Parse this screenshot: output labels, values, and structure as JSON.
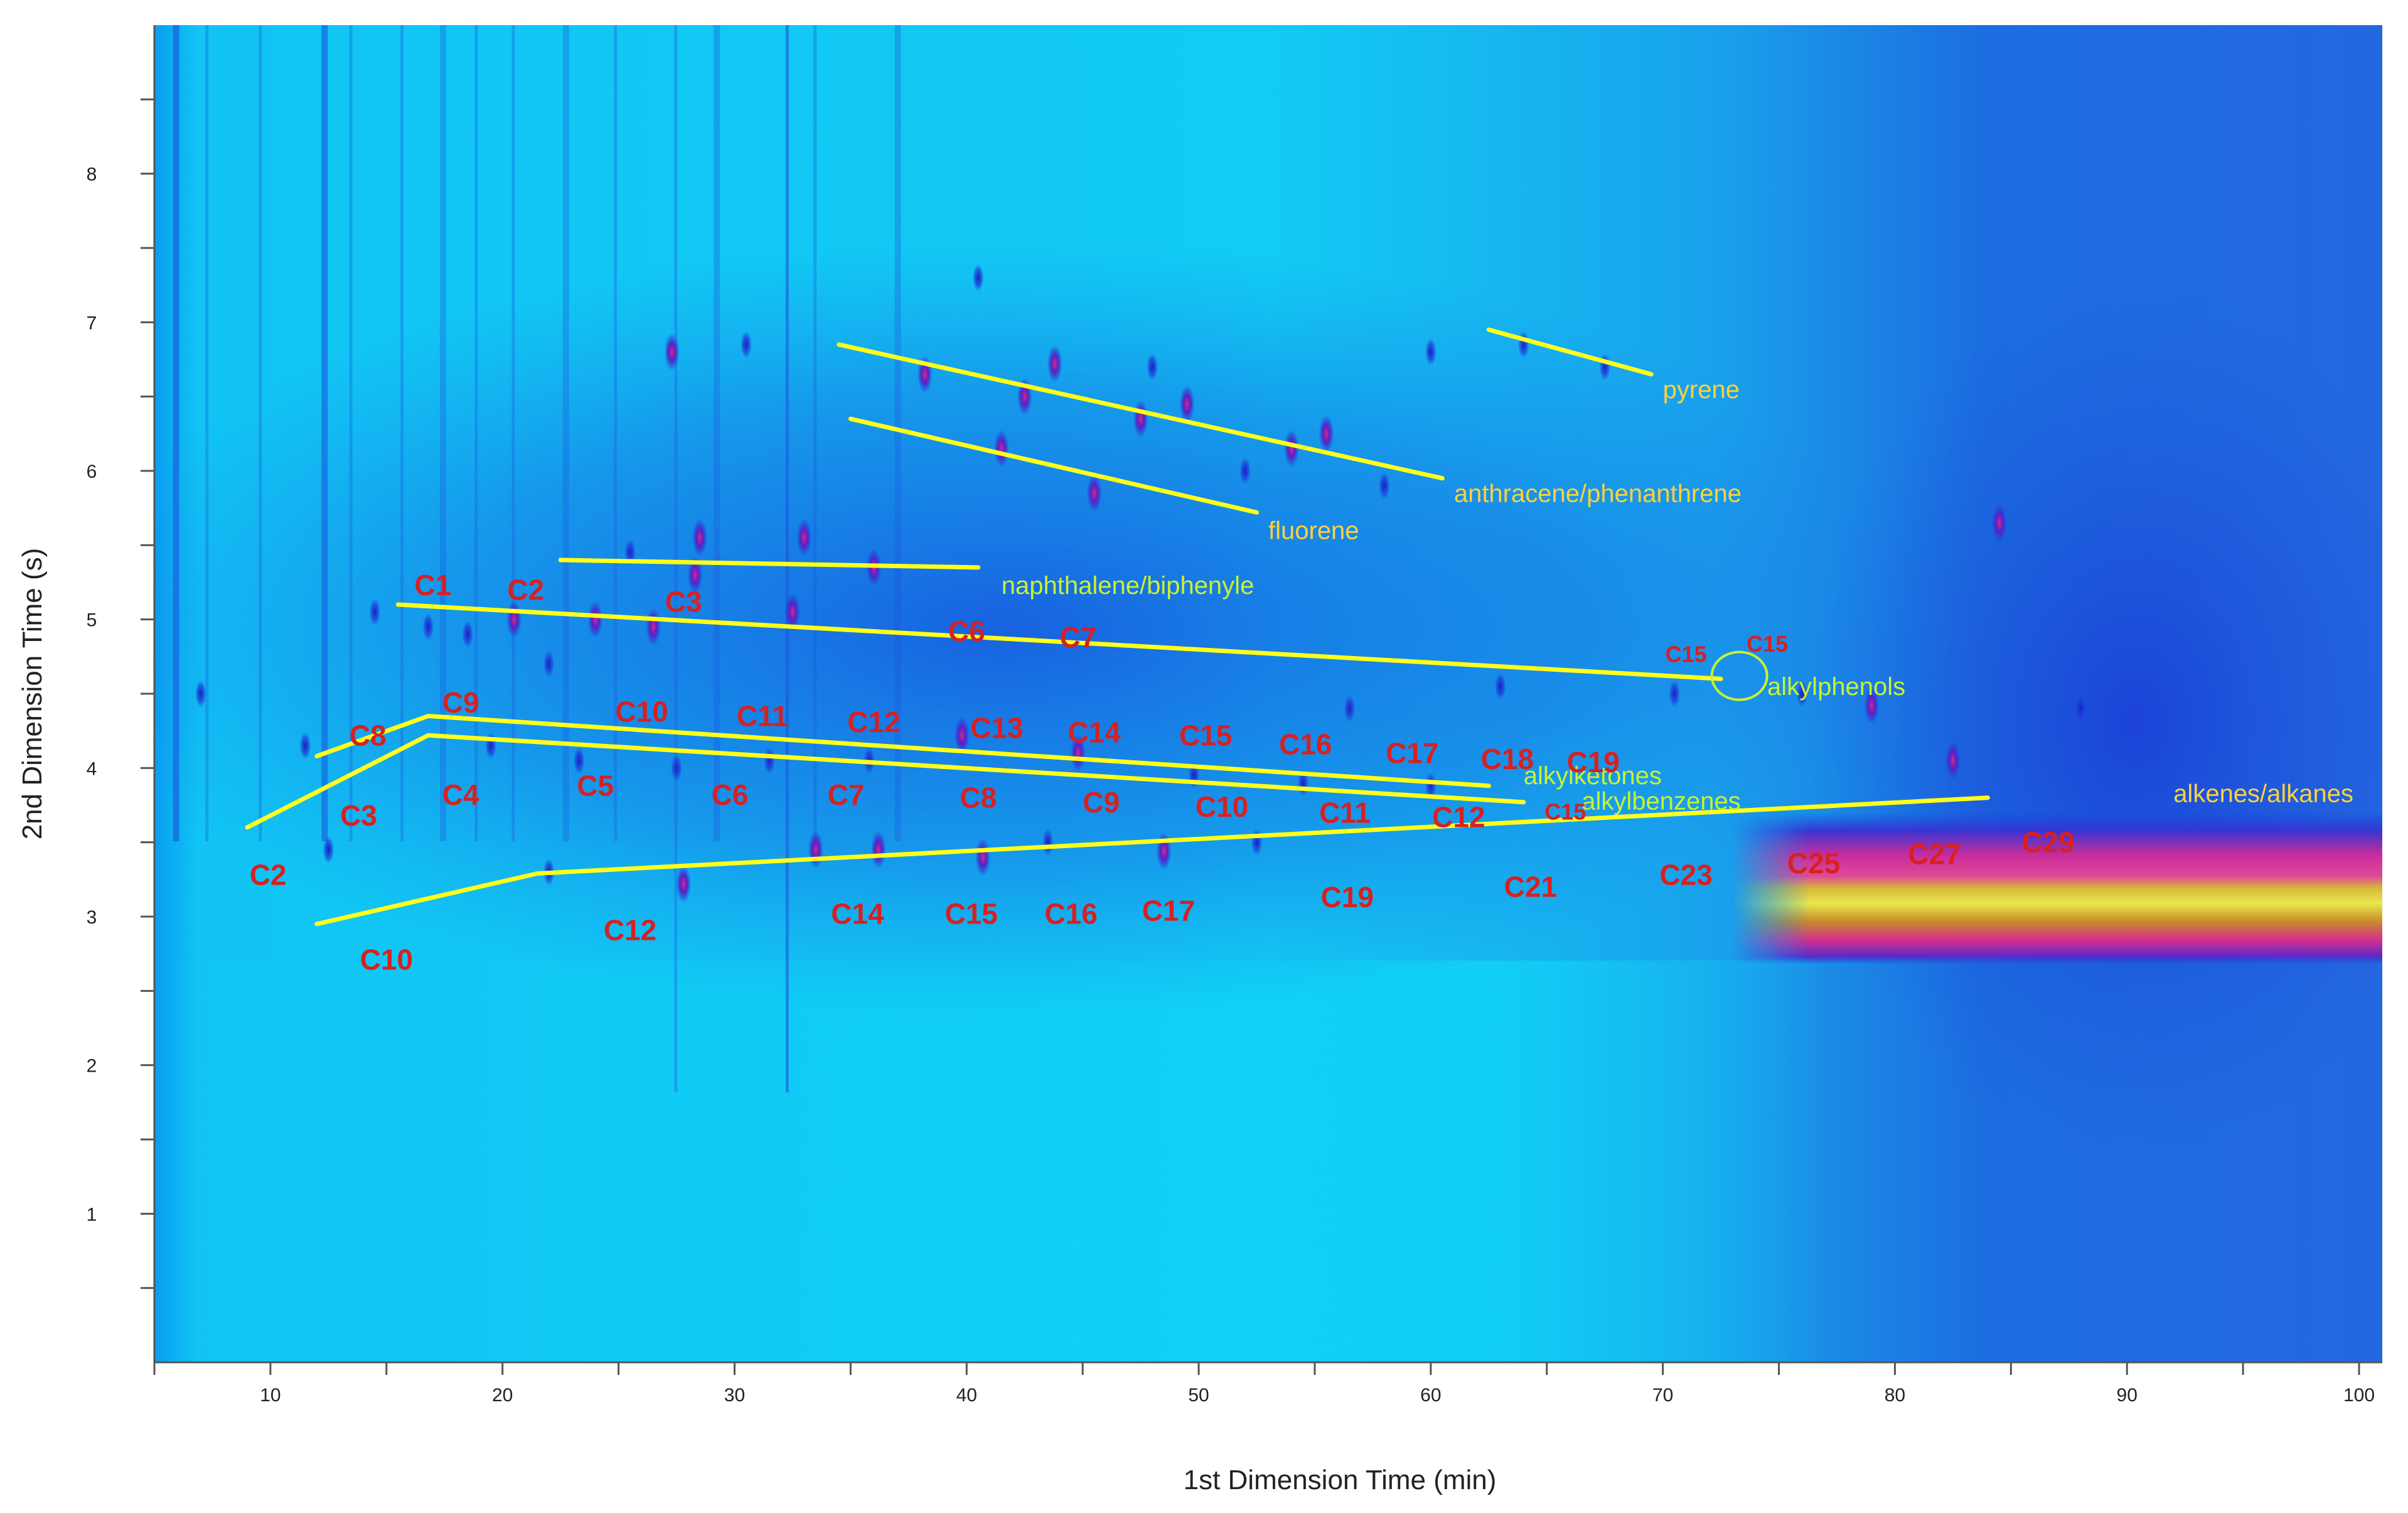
{
  "chart_data": {
    "type": "heatmap",
    "xlabel": "1st Dimension Time (min)",
    "ylabel": "2nd Dimension Time (s)",
    "xlim": [
      5,
      101
    ],
    "ylim": [
      0,
      9
    ],
    "xticks": [
      10,
      20,
      30,
      40,
      50,
      60,
      70,
      80,
      90,
      100
    ],
    "yticks": [
      1,
      2,
      3,
      4,
      5,
      6,
      7,
      8
    ],
    "colors": {
      "background": "#0ad0f5",
      "intense_blue": "#1a3fd8",
      "peak": "#c21f88",
      "hot": "#e6e640",
      "line": "#ffff1a",
      "group_label": "#ffd23a",
      "group_label_green": "#c8f232",
      "carbon_label": "#d82020"
    },
    "groups": [
      {
        "name": "pyrene",
        "color": "#ffd23a",
        "line": [
          [
            62.5,
            6.95
          ],
          [
            69.5,
            6.65
          ]
        ],
        "label_at": [
          70,
          6.55
        ]
      },
      {
        "name": "anthracene/phenanthrene",
        "color": "#ffd23a",
        "line": [
          [
            34.5,
            6.85
          ],
          [
            60.5,
            5.95
          ]
        ],
        "label_at": [
          61,
          5.85
        ]
      },
      {
        "name": "fluorene",
        "color": "#ffd23a",
        "line": [
          [
            35,
            6.35
          ],
          [
            52.5,
            5.72
          ]
        ],
        "label_at": [
          53,
          5.6
        ]
      },
      {
        "name": "naphthalene/biphenyle",
        "color": "#c8f232",
        "line": [
          [
            22.5,
            5.4
          ],
          [
            40.5,
            5.35
          ]
        ],
        "label_at": [
          41.5,
          5.23
        ]
      },
      {
        "name": "alkylphenols",
        "color": "#c8f232",
        "line": [
          [
            15.5,
            5.1
          ],
          [
            72.5,
            4.6
          ]
        ],
        "label_at": [
          74.5,
          4.55
        ]
      },
      {
        "name": "alkylketones",
        "color": "#c8f232",
        "line": [
          [
            12,
            4.08
          ],
          [
            16.8,
            4.35
          ],
          [
            62.5,
            3.88
          ]
        ],
        "label_at": [
          64,
          3.95
        ]
      },
      {
        "name": "alkylbenzenes",
        "color": "#c8f232",
        "line": [
          [
            9,
            3.6
          ],
          [
            16.8,
            4.22
          ],
          [
            64,
            3.77
          ]
        ],
        "label_at": [
          66.5,
          3.78
        ]
      },
      {
        "name": "alkenes/alkanes",
        "color": "#ffd23a",
        "line": [
          [
            12,
            2.95
          ],
          [
            21.5,
            3.29
          ],
          [
            84,
            3.8
          ]
        ],
        "label_at": [
          92,
          3.83
        ]
      }
    ],
    "carbon_labels": [
      {
        "text": "C1",
        "x": 17,
        "y": 5.23
      },
      {
        "text": "C2",
        "x": 21,
        "y": 5.2
      },
      {
        "text": "C3",
        "x": 27.8,
        "y": 5.12
      },
      {
        "text": "C6",
        "x": 40,
        "y": 4.92
      },
      {
        "text": "C7",
        "x": 44.8,
        "y": 4.88
      },
      {
        "text": "C15",
        "x": 71,
        "y": 4.78,
        "size": "small"
      },
      {
        "text": "C15",
        "x": 74.5,
        "y": 4.85,
        "size": "small"
      },
      {
        "text": "C8",
        "x": 14.2,
        "y": 4.22
      },
      {
        "text": "C9",
        "x": 18.2,
        "y": 4.44
      },
      {
        "text": "C10",
        "x": 26,
        "y": 4.38
      },
      {
        "text": "C11",
        "x": 31.2,
        "y": 4.35
      },
      {
        "text": "C12",
        "x": 36,
        "y": 4.31
      },
      {
        "text": "C13",
        "x": 41.3,
        "y": 4.27
      },
      {
        "text": "C14",
        "x": 45.5,
        "y": 4.24
      },
      {
        "text": "C15",
        "x": 50.3,
        "y": 4.22
      },
      {
        "text": "C16",
        "x": 54.6,
        "y": 4.16
      },
      {
        "text": "C17",
        "x": 59.2,
        "y": 4.1
      },
      {
        "text": "C18",
        "x": 63.3,
        "y": 4.06
      },
      {
        "text": "C19",
        "x": 67,
        "y": 4.04
      },
      {
        "text": "C15",
        "x": 65.8,
        "y": 3.72,
        "size": "small"
      },
      {
        "text": "C3",
        "x": 13.8,
        "y": 3.68
      },
      {
        "text": "C4",
        "x": 18.2,
        "y": 3.82
      },
      {
        "text": "C5",
        "x": 24,
        "y": 3.88
      },
      {
        "text": "C6",
        "x": 29.8,
        "y": 3.82
      },
      {
        "text": "C7",
        "x": 34.8,
        "y": 3.82
      },
      {
        "text": "C8",
        "x": 40.5,
        "y": 3.8
      },
      {
        "text": "C9",
        "x": 45.8,
        "y": 3.77
      },
      {
        "text": "C10",
        "x": 51,
        "y": 3.74
      },
      {
        "text": "C11",
        "x": 56.3,
        "y": 3.7
      },
      {
        "text": "C12",
        "x": 61.2,
        "y": 3.67
      },
      {
        "text": "C2",
        "x": 9.9,
        "y": 3.28
      },
      {
        "text": "C10",
        "x": 15,
        "y": 2.71
      },
      {
        "text": "C12",
        "x": 25.5,
        "y": 2.91
      },
      {
        "text": "C14",
        "x": 35.3,
        "y": 3.02
      },
      {
        "text": "C15",
        "x": 40.2,
        "y": 3.02
      },
      {
        "text": "C16",
        "x": 44.5,
        "y": 3.02
      },
      {
        "text": "C17",
        "x": 48.7,
        "y": 3.04
      },
      {
        "text": "C19",
        "x": 56.4,
        "y": 3.13
      },
      {
        "text": "C21",
        "x": 64.3,
        "y": 3.2
      },
      {
        "text": "C23",
        "x": 71,
        "y": 3.28
      },
      {
        "text": "C25",
        "x": 76.5,
        "y": 3.36
      },
      {
        "text": "C27",
        "x": 81.7,
        "y": 3.42
      },
      {
        "text": "C29",
        "x": 86.6,
        "y": 3.5
      }
    ],
    "peaks": [
      [
        27.3,
        6.8,
        "hi"
      ],
      [
        28.5,
        5.55,
        "hi"
      ],
      [
        33,
        5.55,
        "hi"
      ],
      [
        28.3,
        5.3,
        "hi"
      ],
      [
        38.2,
        6.65,
        "hi"
      ],
      [
        42.5,
        6.5,
        "hi"
      ],
      [
        43.8,
        6.72,
        "hi"
      ],
      [
        47.5,
        6.35,
        "hi"
      ],
      [
        49.5,
        6.45,
        "hi"
      ],
      [
        55.5,
        6.25,
        "hi"
      ],
      [
        54,
        6.15,
        "hi"
      ],
      [
        41.5,
        6.15,
        "hi"
      ],
      [
        45.5,
        5.85,
        "hi"
      ],
      [
        20.5,
        5.0,
        "hi"
      ],
      [
        24,
        5.0,
        "hi"
      ],
      [
        26.5,
        4.95,
        "hi"
      ],
      [
        32.5,
        5.05,
        "hi"
      ],
      [
        36,
        5.35,
        "hi"
      ],
      [
        39.8,
        4.22,
        "hi"
      ],
      [
        44.8,
        4.1,
        "hi"
      ],
      [
        36.2,
        3.45,
        "hi"
      ],
      [
        40.7,
        3.4,
        "hi"
      ],
      [
        48.5,
        3.44,
        "hi"
      ],
      [
        79,
        4.42,
        "hi"
      ],
      [
        84.5,
        5.65,
        "hi"
      ],
      [
        82.5,
        4.05,
        "hi"
      ],
      [
        27.8,
        3.22,
        "hi"
      ],
      [
        33.5,
        3.45,
        "hi"
      ],
      [
        14.5,
        5.05,
        "lo"
      ],
      [
        16.8,
        4.95,
        "lo"
      ],
      [
        18.5,
        4.9,
        "lo"
      ],
      [
        22,
        4.7,
        "lo"
      ],
      [
        25.5,
        5.45,
        "lo"
      ],
      [
        30.5,
        6.85,
        "lo"
      ],
      [
        40.5,
        7.3,
        "lo"
      ],
      [
        48,
        6.7,
        "lo"
      ],
      [
        60,
        6.8,
        "lo"
      ],
      [
        64,
        6.85,
        "lo"
      ],
      [
        67.5,
        6.7,
        "lo"
      ],
      [
        52,
        6.0,
        "lo"
      ],
      [
        58,
        5.9,
        "lo"
      ],
      [
        31.5,
        4.05,
        "lo"
      ],
      [
        35.8,
        4.05,
        "lo"
      ],
      [
        49.8,
        3.95,
        "lo"
      ],
      [
        54.5,
        3.9,
        "lo"
      ],
      [
        60,
        3.88,
        "lo"
      ],
      [
        22,
        3.3,
        "lo"
      ],
      [
        43.5,
        3.5,
        "lo"
      ],
      [
        52.5,
        3.5,
        "lo"
      ],
      [
        11.5,
        4.15,
        "lo"
      ],
      [
        12.5,
        3.45,
        "lo"
      ],
      [
        7,
        4.5,
        "lo"
      ],
      [
        19.5,
        4.15,
        "lo"
      ],
      [
        23.3,
        4.05,
        "lo"
      ],
      [
        27.5,
        4.0,
        "lo"
      ],
      [
        56.5,
        4.4,
        "lo"
      ],
      [
        63,
        4.55,
        "lo"
      ],
      [
        70.5,
        4.5,
        "lo"
      ],
      [
        76,
        4.5,
        "lo"
      ],
      [
        88,
        4.4,
        "lo"
      ]
    ],
    "hot_band": {
      "x": [
        73,
        101
      ],
      "y": [
        2.68,
        3.7
      ]
    }
  }
}
